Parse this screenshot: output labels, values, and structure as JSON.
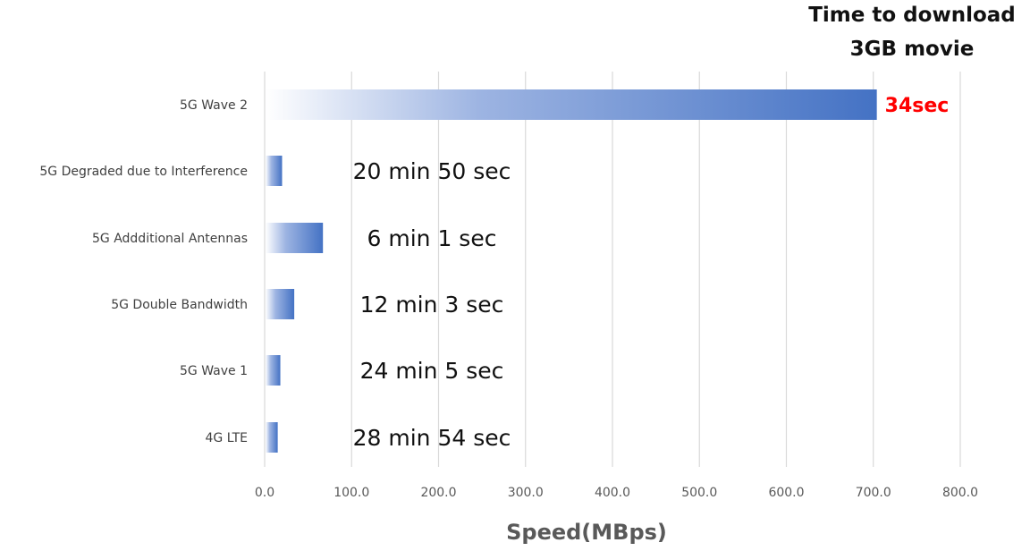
{
  "header": {
    "line1": "Time to download",
    "line2": "3GB movie"
  },
  "chart_data": {
    "type": "bar",
    "orientation": "horizontal",
    "categories": [
      "5G Wave 2",
      "5G Degraded due to Interference",
      "5G Addditional Antennas",
      "5G Double Bandwidth",
      "5G Wave 1",
      "4G LTE"
    ],
    "values": [
      703,
      19,
      66,
      33,
      17,
      14
    ],
    "annotations": [
      "34sec",
      "20 min 50 sec",
      "6 min 1 sec",
      "12 min 3 sec",
      "24 min 5 sec",
      "28 min 54 sec"
    ],
    "xlabel": "Speed(MBps)",
    "xlim": [
      0,
      800
    ],
    "xticks": [
      "0.0",
      "100.0",
      "200.0",
      "300.0",
      "400.0",
      "500.0",
      "600.0",
      "700.0",
      "800.0"
    ],
    "grid": true,
    "colors": {
      "bar": "#4472c4",
      "highlight": "#ff0000",
      "gridline": "#d9d9d9",
      "tick_text": "#595959",
      "label_text": "#111111"
    }
  }
}
